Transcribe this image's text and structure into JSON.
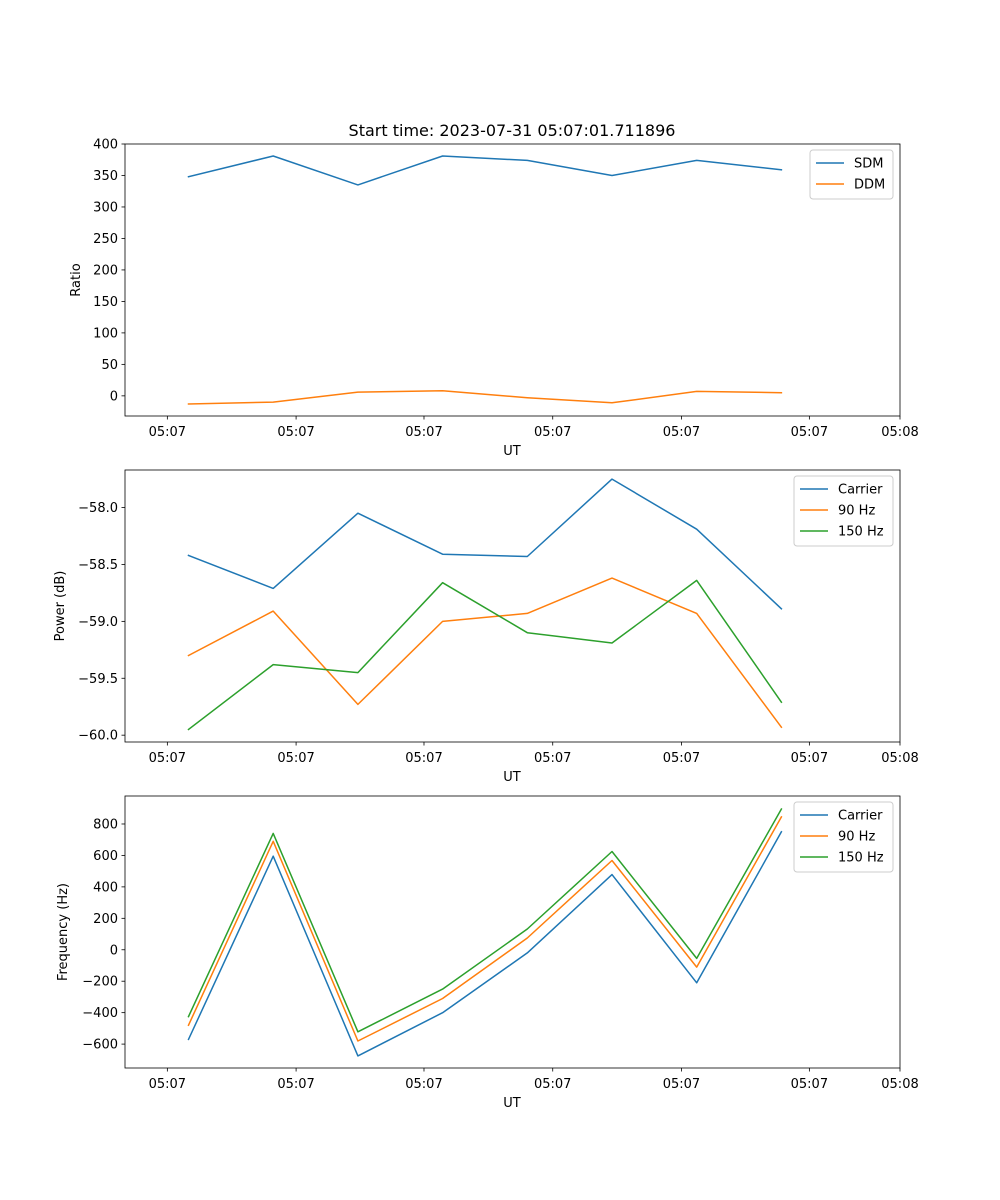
{
  "figure_title": "Start time: 2023-07-31 05:07:01.711896",
  "colors": {
    "blue": "#1f77b4",
    "orange": "#ff7f0e",
    "green": "#2ca02c"
  },
  "chart_data": [
    {
      "type": "line",
      "title": "Start time: 2023-07-31 05:07:01.711896",
      "xlabel": "UT",
      "ylabel": "Ratio",
      "x": [
        1,
        2,
        3,
        4,
        5,
        6,
        7,
        8
      ],
      "xlim": [
        0.25,
        9.4
      ],
      "xticks": [
        0.75,
        2.27,
        3.78,
        5.3,
        6.82,
        8.33,
        9.4
      ],
      "xtick_labels": [
        "05:07",
        "05:07",
        "05:07",
        "05:07",
        "05:07",
        "05:07",
        "05:08"
      ],
      "ylim": [
        -32,
        400
      ],
      "yticks": [
        0,
        50,
        100,
        150,
        200,
        250,
        300,
        350,
        400
      ],
      "ytick_labels": [
        "0",
        "50",
        "100",
        "150",
        "200",
        "250",
        "300",
        "350",
        "400"
      ],
      "legend_position": "top-right",
      "series": [
        {
          "name": "SDM",
          "color": "#1f77b4",
          "values": [
            348,
            381,
            335,
            381,
            374,
            350,
            374,
            359
          ]
        },
        {
          "name": "DDM",
          "color": "#ff7f0e",
          "values": [
            -13,
            -10,
            6,
            8,
            -3,
            -11,
            7,
            5
          ]
        }
      ]
    },
    {
      "type": "line",
      "title": "",
      "xlabel": "UT",
      "ylabel": "Power (dB)",
      "x": [
        1,
        2,
        3,
        4,
        5,
        6,
        7,
        8
      ],
      "xlim": [
        0.25,
        9.4
      ],
      "xticks": [
        0.75,
        2.27,
        3.78,
        5.3,
        6.82,
        8.33,
        9.4
      ],
      "xtick_labels": [
        "05:07",
        "05:07",
        "05:07",
        "05:07",
        "05:07",
        "05:07",
        "05:08"
      ],
      "ylim": [
        -60.06,
        -57.67
      ],
      "yticks": [
        -60.0,
        -59.5,
        -59.0,
        -58.5,
        -58.0
      ],
      "ytick_labels": [
        "−60.0",
        "−59.5",
        "−59.0",
        "−58.5",
        "−58.0"
      ],
      "legend_position": "top-right",
      "series": [
        {
          "name": "Carrier",
          "color": "#1f77b4",
          "values": [
            -58.42,
            -58.71,
            -58.05,
            -58.41,
            -58.43,
            -57.75,
            -58.19,
            -58.89
          ]
        },
        {
          "name": "90 Hz",
          "color": "#ff7f0e",
          "values": [
            -59.3,
            -58.91,
            -59.73,
            -59.0,
            -58.93,
            -58.62,
            -58.93,
            -59.93
          ]
        },
        {
          "name": "150 Hz",
          "color": "#2ca02c",
          "values": [
            -59.95,
            -59.38,
            -59.45,
            -58.66,
            -59.1,
            -59.19,
            -58.64,
            -59.71
          ]
        }
      ]
    },
    {
      "type": "line",
      "title": "",
      "xlabel": "UT",
      "ylabel": "Frequency (Hz)",
      "x": [
        1,
        2,
        3,
        4,
        5,
        6,
        7,
        8
      ],
      "xlim": [
        0.25,
        9.4
      ],
      "xticks": [
        0.75,
        2.27,
        3.78,
        5.3,
        6.82,
        8.33,
        9.4
      ],
      "xtick_labels": [
        "05:07",
        "05:07",
        "05:07",
        "05:07",
        "05:07",
        "05:07",
        "05:08"
      ],
      "ylim": [
        -752,
        978
      ],
      "yticks": [
        -600,
        -400,
        -200,
        0,
        200,
        400,
        600,
        800
      ],
      "ytick_labels": [
        "−600",
        "−400",
        "−200",
        "0",
        "200",
        "400",
        "600",
        "800"
      ],
      "legend_position": "top-right",
      "series": [
        {
          "name": "Carrier",
          "color": "#1f77b4",
          "values": [
            -570,
            595,
            -675,
            -400,
            -20,
            478,
            -210,
            750
          ]
        },
        {
          "name": "90 Hz",
          "color": "#ff7f0e",
          "values": [
            -480,
            690,
            -580,
            -310,
            75,
            568,
            -110,
            845
          ]
        },
        {
          "name": "150 Hz",
          "color": "#2ca02c",
          "values": [
            -425,
            740,
            -522,
            -250,
            132,
            625,
            -55,
            895
          ]
        }
      ]
    }
  ]
}
